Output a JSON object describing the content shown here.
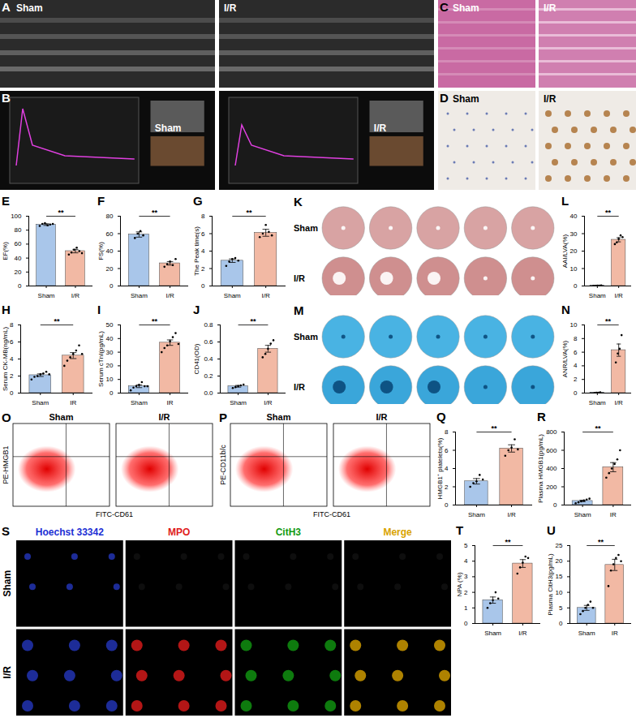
{
  "chart_data": [
    {
      "panel": "E",
      "type": "bar",
      "categories": [
        "Sham",
        "I/R"
      ],
      "values": [
        88,
        50
      ],
      "error": [
        1.2,
        2.5
      ],
      "points": [
        [
          86,
          89,
          90,
          87,
          88,
          89
        ],
        [
          45,
          48,
          52,
          55,
          50,
          47
        ]
      ],
      "colors": [
        "#a9c6ea",
        "#f2b9a4"
      ],
      "ylabel": "EF(%)",
      "ylim": [
        0,
        100
      ],
      "yticks": [
        0,
        20,
        40,
        60,
        80,
        100
      ],
      "significance": "**"
    },
    {
      "panel": "F",
      "type": "bar",
      "categories": [
        "Sham",
        "I/R"
      ],
      "values": [
        59,
        26
      ],
      "error": [
        3,
        2
      ],
      "points": [
        [
          55,
          60,
          63,
          58
        ],
        [
          22,
          25,
          28,
          24,
          31
        ]
      ],
      "colors": [
        "#a9c6ea",
        "#f2b9a4"
      ],
      "ylabel": "FS(%)",
      "ylim": [
        0,
        80
      ],
      "yticks": [
        0,
        20,
        40,
        60,
        80
      ],
      "significance": "**"
    },
    {
      "panel": "G",
      "type": "bar",
      "categories": [
        "Sham",
        "I/R"
      ],
      "values": [
        2.9,
        6.1
      ],
      "error": [
        0.2,
        0.4
      ],
      "points": [
        [
          2.3,
          2.8,
          3.1,
          3.2,
          2.9
        ],
        [
          5.6,
          6.0,
          7.0,
          6.2,
          5.8
        ]
      ],
      "colors": [
        "#a9c6ea",
        "#f2b9a4"
      ],
      "ylabel": "The Peak time(s)",
      "ylim": [
        0,
        8
      ],
      "yticks": [
        0,
        2,
        4,
        6,
        8
      ],
      "significance": "**"
    },
    {
      "panel": "H",
      "type": "bar",
      "categories": [
        "Sham",
        "IR"
      ],
      "values": [
        2.1,
        4.4
      ],
      "error": [
        0.15,
        0.35
      ],
      "points": [
        [
          1.6,
          1.9,
          2.0,
          2.2,
          2.3,
          2.5,
          2.2
        ],
        [
          3.2,
          3.8,
          4.2,
          4.6,
          5.0,
          5.6,
          4.6
        ]
      ],
      "colors": [
        "#a9c6ea",
        "#f2b9a4"
      ],
      "ylabel": "Serum CK-MB(ng/mL)",
      "ylim": [
        0,
        8
      ],
      "yticks": [
        0,
        2,
        4,
        6,
        8
      ],
      "significance": "**"
    },
    {
      "panel": "I",
      "type": "bar",
      "categories": [
        "Sham",
        "IR"
      ],
      "values": [
        5,
        37
      ],
      "error": [
        1,
        2
      ],
      "points": [
        [
          2,
          4,
          5,
          6,
          8,
          5,
          5
        ],
        [
          30,
          33,
          35,
          38,
          41,
          44,
          36
        ]
      ],
      "colors": [
        "#a9c6ea",
        "#f2b9a4"
      ],
      "ylabel": "Serum cTnI(pg/mL)",
      "ylim": [
        0,
        50
      ],
      "yticks": [
        0,
        10,
        20,
        30,
        40,
        50
      ],
      "significance": "**"
    },
    {
      "panel": "J",
      "type": "bar",
      "categories": [
        "Sham",
        "I/R"
      ],
      "values": [
        0.08,
        0.52
      ],
      "error": [
        0.01,
        0.04
      ],
      "points": [
        [
          0.06,
          0.07,
          0.08,
          0.09,
          0.1
        ],
        [
          0.42,
          0.46,
          0.52,
          0.58,
          0.62
        ]
      ],
      "colors": [
        "#a9c6ea",
        "#f2b9a4"
      ],
      "ylabel": "CD41(OD)",
      "ylim": [
        0,
        0.8
      ],
      "yticks": [
        {
          "value": 0,
          "label": "0.0"
        },
        {
          "value": 0.2,
          "label": "0.2"
        },
        {
          "value": 0.4,
          "label": "0.4"
        },
        {
          "value": 0.6,
          "label": "0.6"
        },
        {
          "value": 0.8,
          "label": "0.8"
        }
      ],
      "significance": "**"
    },
    {
      "panel": "L",
      "type": "bar",
      "categories": [
        "Sham",
        "I/R"
      ],
      "values": [
        0.2,
        26.5
      ],
      "error": [
        0.05,
        1.2
      ],
      "points": [
        [
          0.1,
          0.1,
          0.2,
          0.2,
          0.3
        ],
        [
          24,
          25,
          27,
          29,
          28
        ]
      ],
      "colors": [
        "#a9c6ea",
        "#f2b9a4"
      ],
      "ylabel": "AAI/LVA(%)",
      "ylim": [
        0,
        40
      ],
      "yticks": [
        0,
        10,
        20,
        30,
        40
      ],
      "significance": "**"
    },
    {
      "panel": "N",
      "type": "bar",
      "categories": [
        "Sham",
        "I/R"
      ],
      "values": [
        0.05,
        6.3
      ],
      "error": [
        0.02,
        0.9
      ],
      "points": [
        [
          0,
          0.05,
          0.05,
          0.1
        ],
        [
          4.5,
          5.8,
          6.5,
          8.5
        ]
      ],
      "colors": [
        "#a9c6ea",
        "#f2b9a4"
      ],
      "ylabel": "ANR/LVA(%)",
      "ylim": [
        0,
        10
      ],
      "yticks": [
        0,
        2,
        4,
        6,
        8,
        10
      ],
      "significance": "**"
    },
    {
      "panel": "Q",
      "type": "bar",
      "categories": [
        "Sham",
        "I/R"
      ],
      "values": [
        2.6,
        6.2
      ],
      "error": [
        0.3,
        0.4
      ],
      "points": [
        [
          2.0,
          2.4,
          2.6,
          3.3,
          2.8
        ],
        [
          5.4,
          6.0,
          6.3,
          7.2,
          6.1
        ]
      ],
      "colors": [
        "#a9c6ea",
        "#f2b9a4"
      ],
      "ylabel": "HMGB1⁺ platelets(%)",
      "ylim": [
        0,
        8
      ],
      "yticks": [
        0,
        2,
        4,
        6,
        8
      ],
      "significance": "**"
    },
    {
      "panel": "R",
      "type": "bar",
      "categories": [
        "Sham",
        "IR"
      ],
      "values": [
        45,
        415
      ],
      "error": [
        8,
        50
      ],
      "points": [
        [
          20,
          30,
          40,
          50,
          60,
          70
        ],
        [
          300,
          350,
          400,
          450,
          500,
          600
        ]
      ],
      "colors": [
        "#a9c6ea",
        "#f2b9a4"
      ],
      "ylabel": "Plasma HMGB1(pg/mL)",
      "ylim": [
        0,
        800
      ],
      "yticks": [
        0,
        200,
        400,
        600,
        800
      ],
      "significance": "**"
    },
    {
      "panel": "T",
      "type": "bar",
      "categories": [
        "Sham",
        "I/R"
      ],
      "values": [
        1.5,
        3.85
      ],
      "error": [
        0.2,
        0.25
      ],
      "points": [
        [
          1.0,
          1.3,
          1.5,
          2.0,
          1.6
        ],
        [
          3.2,
          3.6,
          3.9,
          4.3,
          4.2
        ]
      ],
      "colors": [
        "#a9c6ea",
        "#f2b9a4"
      ],
      "ylabel": "NPA (%)",
      "ylim": [
        0,
        5
      ],
      "yticks": [
        0,
        1,
        2,
        3,
        4,
        5
      ],
      "significance": "**"
    },
    {
      "panel": "U",
      "type": "bar",
      "categories": [
        "Sham",
        "IR"
      ],
      "values": [
        5,
        18.8
      ],
      "error": [
        0.8,
        1.8
      ],
      "points": [
        [
          3,
          4,
          5,
          6,
          7,
          5
        ],
        [
          12,
          17,
          19,
          21,
          22,
          20
        ]
      ],
      "colors": [
        "#a9c6ea",
        "#f2b9a4"
      ],
      "ylabel": "Plasma CitH3(pg/mL)",
      "ylim": [
        0,
        25
      ],
      "yticks": [
        0,
        5,
        10,
        15,
        20,
        25
      ],
      "significance": "**"
    }
  ],
  "panels": [
    {
      "panel": "A",
      "labels": [
        "Sham",
        "I/R"
      ]
    },
    {
      "panel": "B",
      "labels": [
        "Sham",
        "I/R"
      ]
    },
    {
      "panel": "C",
      "labels": [
        "Sham",
        "I/R"
      ]
    },
    {
      "panel": "D",
      "labels": [
        "Sham",
        "I/R"
      ]
    },
    {
      "panel": "K",
      "rows": [
        "Sham",
        "I/R"
      ]
    },
    {
      "panel": "M",
      "rows": [
        "Sham",
        "I/R"
      ]
    },
    {
      "panel": "O",
      "labels": [
        "Sham",
        "I/R"
      ],
      "x_label": "FITC-CD61",
      "y_label": "PE-HMGB1"
    },
    {
      "panel": "P",
      "labels": [
        "Sham",
        "I/R"
      ],
      "x_label": "FITC-CD61",
      "y_label": "PE-CD11b/c"
    },
    {
      "panel": "S",
      "rows": [
        "Sham",
        "I/R"
      ],
      "columns": [
        {
          "label": "Hoechst 33342",
          "color": "#1c2fd4"
        },
        {
          "label": "MPO",
          "color": "#e01b1b"
        },
        {
          "label": "CitH3",
          "color": "#129a12"
        },
        {
          "label": "Merge",
          "color": "#d9a300"
        }
      ]
    }
  ]
}
